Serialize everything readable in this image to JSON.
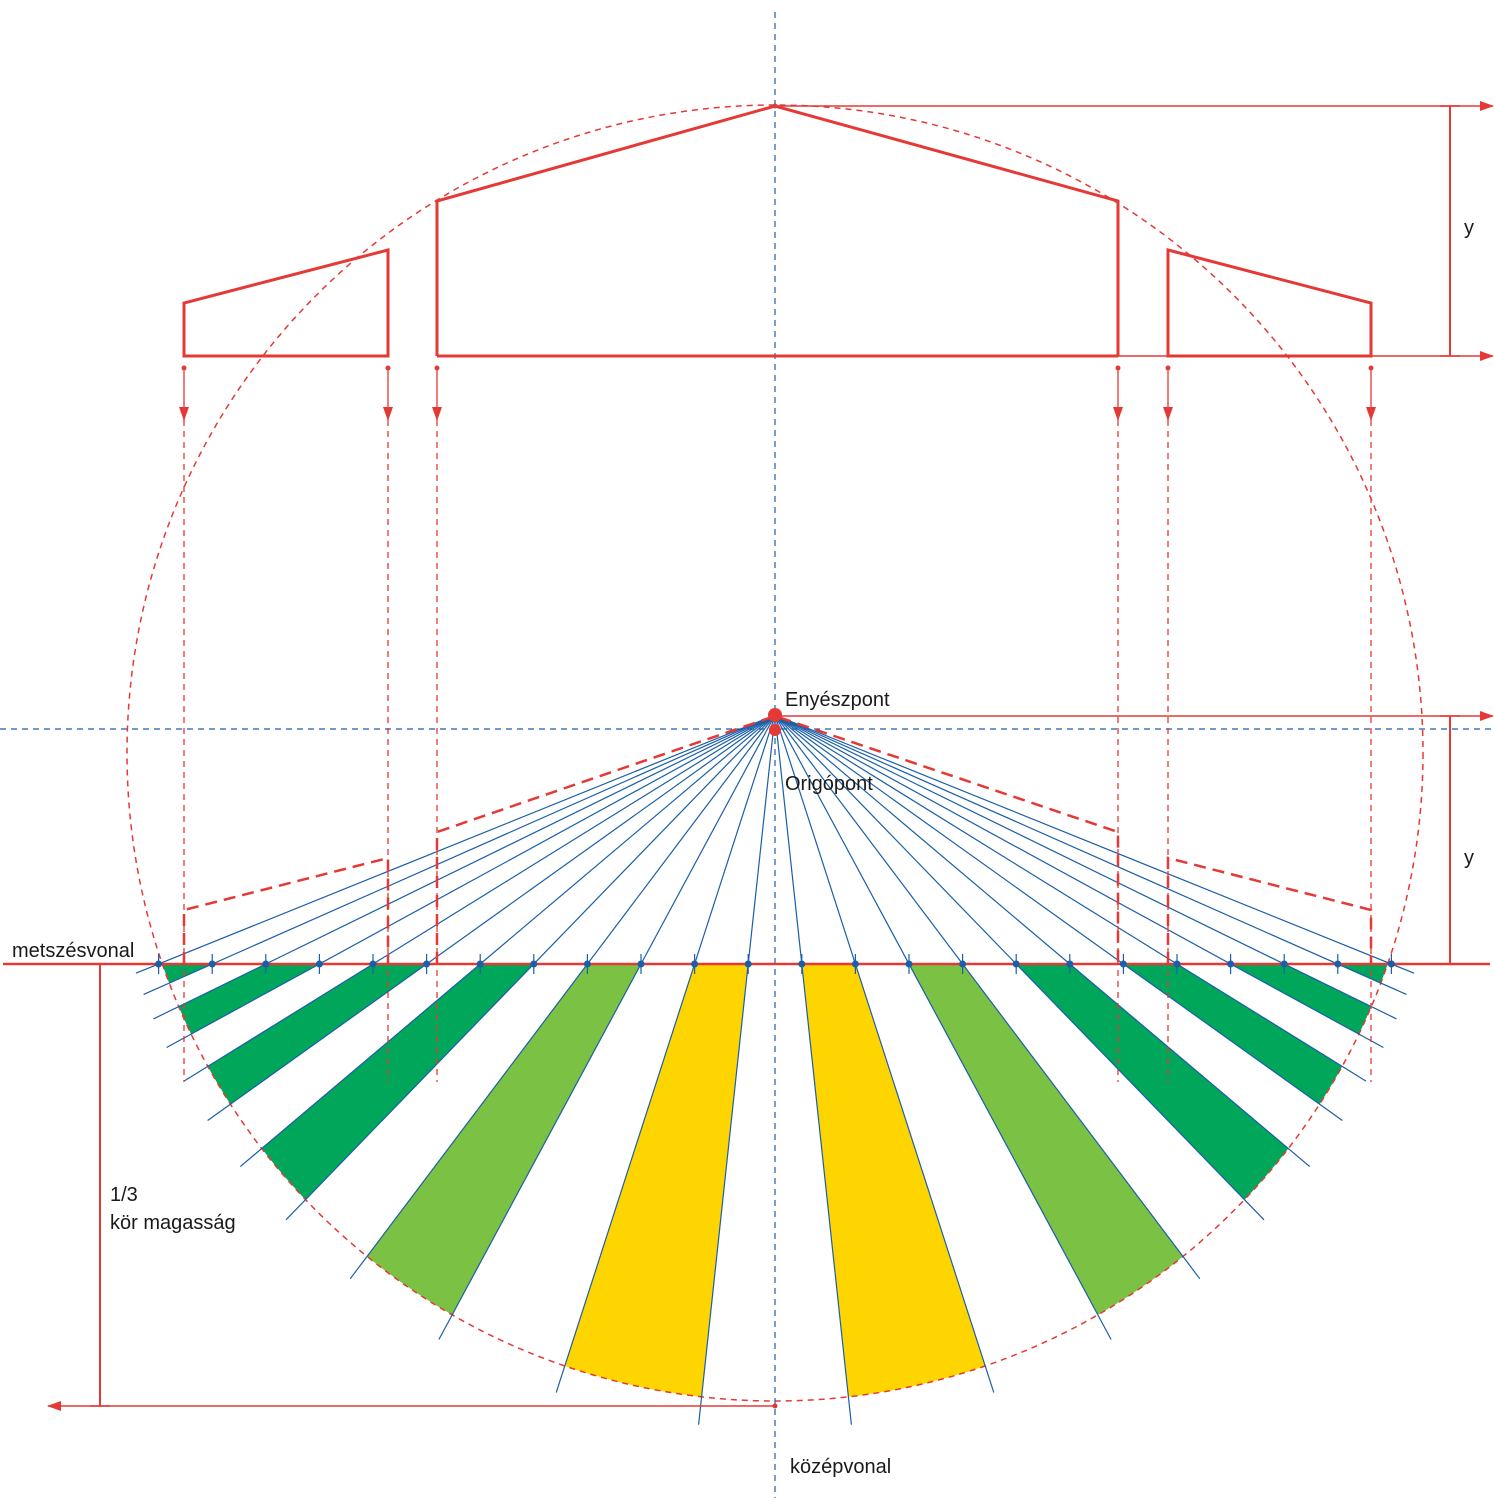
{
  "labels": {
    "vanishing_point": "Enyészpont",
    "origin_point": "Origópont",
    "cut_line": "metszésvonal",
    "center_line": "középvonal",
    "height_y_top": "y",
    "height_y_bottom": "y",
    "third_height_line1": "1/3",
    "third_height_line2": "kör magasság"
  },
  "colors": {
    "guide_red": "#e53935",
    "ray_blue": "#1a5fa8",
    "dark_green": "#00a65a",
    "light_green": "#7bc143",
    "yellow": "#ffd500"
  },
  "bands": [
    {
      "side": "left",
      "index": 1,
      "color": "dark_green"
    },
    {
      "side": "left",
      "index": 2,
      "color": "dark_green"
    },
    {
      "side": "left",
      "index": 3,
      "color": "dark_green"
    },
    {
      "side": "left",
      "index": 4,
      "color": "dark_green"
    },
    {
      "side": "left",
      "index": 5,
      "color": "light_green"
    },
    {
      "side": "left",
      "index": 6,
      "color": "yellow"
    },
    {
      "side": "right",
      "index": 6,
      "color": "yellow"
    },
    {
      "side": "right",
      "index": 5,
      "color": "light_green"
    },
    {
      "side": "right",
      "index": 4,
      "color": "dark_green"
    },
    {
      "side": "right",
      "index": 3,
      "color": "dark_green"
    },
    {
      "side": "right",
      "index": 2,
      "color": "dark_green"
    },
    {
      "side": "right",
      "index": 1,
      "color": "dark_green"
    }
  ]
}
